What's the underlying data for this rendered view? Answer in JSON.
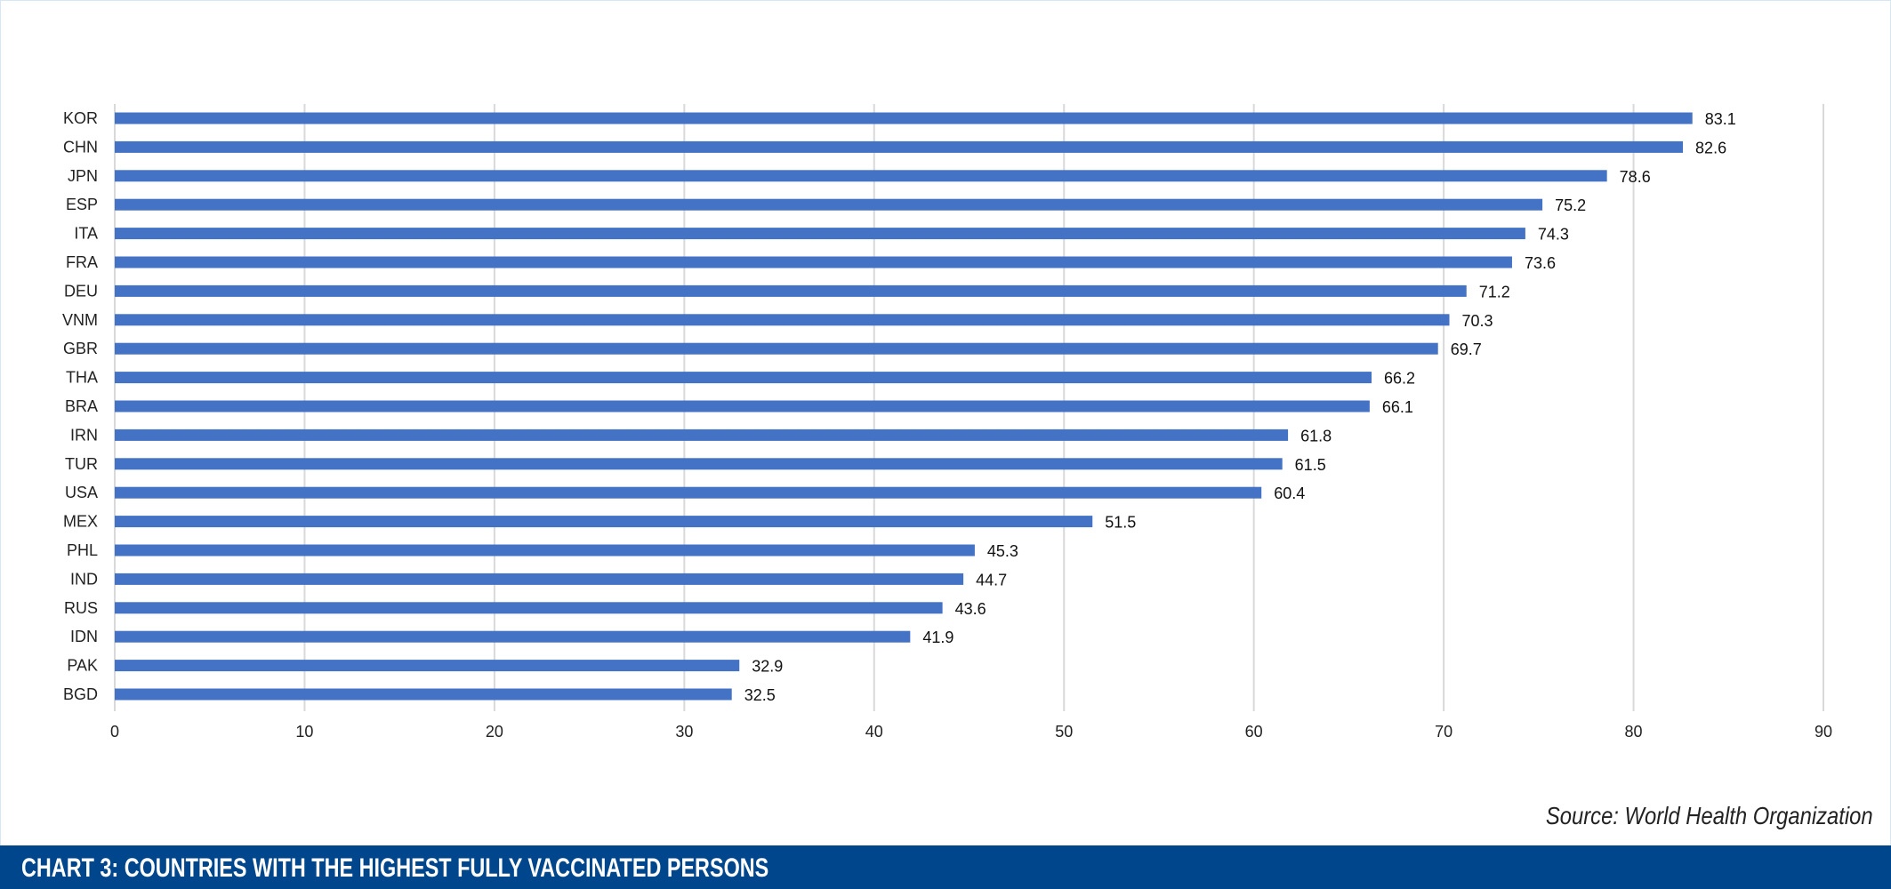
{
  "chart_data": {
    "type": "bar",
    "orientation": "horizontal",
    "title": "CHART 3: COUNTRIES WITH THE HIGHEST FULLY VACCINATED PERSONS",
    "source": "Source: World Health Organization",
    "categories": [
      "KOR",
      "CHN",
      "JPN",
      "ESP",
      "ITA",
      "FRA",
      "DEU",
      "VNM",
      "GBR",
      "THA",
      "BRA",
      "IRN",
      "TUR",
      "USA",
      "MEX",
      "PHL",
      "IND",
      "RUS",
      "IDN",
      "PAK",
      "BGD"
    ],
    "values": [
      83.1,
      82.6,
      78.6,
      75.2,
      74.3,
      73.6,
      71.2,
      70.3,
      69.7,
      66.2,
      66.1,
      61.8,
      61.5,
      60.4,
      51.5,
      45.3,
      44.7,
      43.6,
      41.9,
      32.9,
      32.5
    ],
    "xlim": [
      0,
      90
    ],
    "xticks": [
      0,
      10,
      20,
      30,
      40,
      50,
      60,
      70,
      80,
      90
    ],
    "grid": true,
    "bar_color": "#4472c4",
    "banner_color": "#00468c",
    "data_labels": true
  }
}
